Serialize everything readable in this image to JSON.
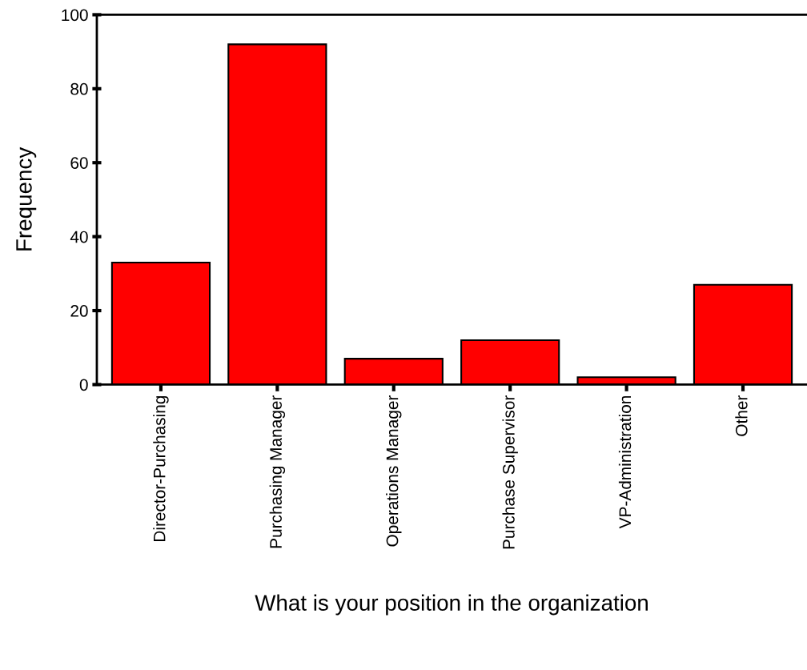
{
  "chart_data": {
    "type": "bar",
    "categories": [
      "Director-Purchasing",
      "Purchasing Manager",
      "Operations Manager",
      "Purchase Supervisor",
      "VP-Administration",
      "Other"
    ],
    "values": [
      33,
      92,
      7,
      12,
      2,
      27
    ],
    "color": "#ff0000",
    "xlabel": "What is your position in the organization",
    "ylabel": "Frequency",
    "ylim": [
      0,
      100
    ],
    "yticks": [
      0,
      20,
      40,
      60,
      80,
      100
    ],
    "grid": false,
    "legend": false
  }
}
